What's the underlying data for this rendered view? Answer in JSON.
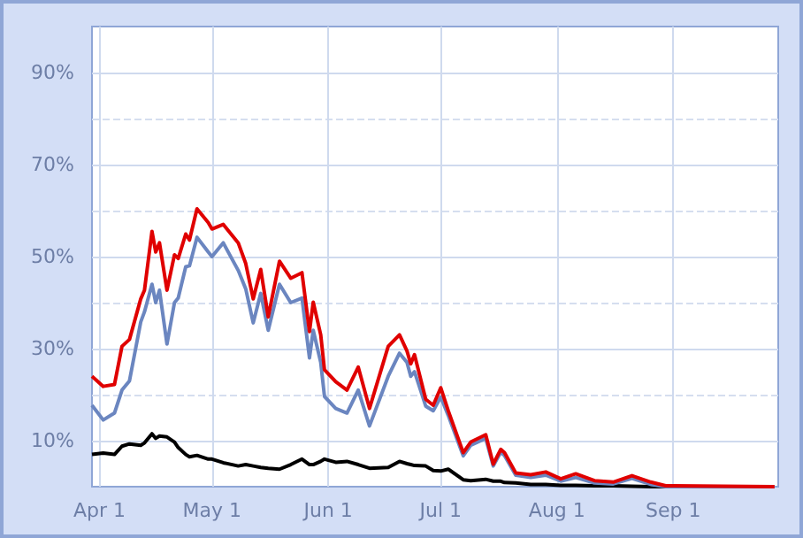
{
  "chart_data": {
    "type": "line",
    "grid": true,
    "marker": "none",
    "line_style": "solid",
    "x": [
      "--03-30",
      "--04-02",
      "--04-05",
      "--04-07",
      "--04-09",
      "--04-12",
      "--04-13",
      "--04-15",
      "--04-16",
      "--04-17",
      "--04-19",
      "--04-21",
      "--04-22",
      "--04-24",
      "--04-25",
      "--04-27",
      "--04-30",
      "--05-01",
      "--05-04",
      "--05-08",
      "--05-10",
      "--05-12",
      "--05-14",
      "--05-16",
      "--05-19",
      "--05-22",
      "--05-25",
      "--05-27",
      "--05-28",
      "--05-30",
      "--05-31",
      "--06-03",
      "--06-06",
      "--06-09",
      "--06-12",
      "--06-17",
      "--06-20",
      "--06-22",
      "--06-23",
      "--06-24",
      "--06-27",
      "--06-29",
      "--07-01",
      "--07-03",
      "--07-07",
      "--07-09",
      "--07-13",
      "--07-15",
      "--07-17",
      "--07-18",
      "--07-21",
      "--07-25",
      "--07-29",
      "--08-02",
      "--08-06",
      "--08-11",
      "--08-16",
      "--08-21",
      "--08-26",
      "--08-30",
      "--09-28"
    ],
    "series": [
      {
        "color": "#000000",
        "values": [
          7,
          7.3,
          7,
          8.8,
          9.3,
          9,
          9.5,
          11.5,
          10.5,
          11,
          10.8,
          9.7,
          8.5,
          7,
          6.5,
          6.8,
          6,
          6,
          5.2,
          4.5,
          4.8,
          4.5,
          4.2,
          4,
          3.8,
          4.8,
          6,
          4.8,
          4.8,
          5.5,
          6,
          5.3,
          5.5,
          4.8,
          4,
          4.2,
          5.5,
          5,
          4.8,
          4.6,
          4.5,
          3.5,
          3.4,
          3.8,
          1.5,
          1.3,
          1.6,
          1.2,
          1.2,
          0.9,
          0.8,
          0.5,
          0.5,
          0.3,
          0.3,
          0.2,
          0.2,
          0.1,
          0,
          0,
          null
        ]
      },
      {
        "color": "#6b86c0",
        "values": [
          17.7,
          14.5,
          16,
          21,
          23,
          35.8,
          38,
          44,
          40,
          42.7,
          31,
          40,
          41,
          47.8,
          48,
          54.2,
          51,
          50,
          53,
          47,
          43,
          35.6,
          42,
          34,
          44,
          40,
          41,
          28,
          34,
          27,
          19.6,
          17,
          16,
          21,
          13.2,
          24,
          29,
          27,
          24,
          25,
          17.5,
          16.5,
          19.5,
          15.5,
          6.7,
          9,
          10.5,
          4.5,
          7.5,
          6.8,
          2.5,
          2,
          2.5,
          1.2,
          2,
          0.8,
          0.6,
          1.8,
          0.5,
          0,
          0
        ]
      },
      {
        "color": "#e00000",
        "values": [
          24,
          21.8,
          22.2,
          30.5,
          32,
          40.8,
          42.7,
          55.5,
          51,
          53,
          42.7,
          50.4,
          49.6,
          54.9,
          53.6,
          60.4,
          57.4,
          56,
          57,
          53,
          48.5,
          40.8,
          47.2,
          36.9,
          49,
          45.3,
          46.5,
          33.7,
          40.1,
          33,
          25.4,
          22.8,
          21,
          26,
          17,
          30.5,
          33,
          29.5,
          26.7,
          28.7,
          19,
          17.7,
          21.5,
          16.5,
          7.4,
          9.7,
          11.3,
          4.9,
          8.1,
          7.4,
          3,
          2.6,
          3.2,
          1.7,
          2.8,
          1.3,
          1,
          2.4,
          1,
          0.2,
          0
        ]
      }
    ],
    "xlim": [
      "--03-30",
      "--09-29"
    ],
    "xticks": [
      {
        "value": "--04-01",
        "label": "Apr 1"
      },
      {
        "value": "--05-01",
        "label": "May 1"
      },
      {
        "value": "--06-01",
        "label": "Jun 1"
      },
      {
        "value": "--07-01",
        "label": "Jul 1"
      },
      {
        "value": "--08-01",
        "label": "Aug 1"
      },
      {
        "value": "--09-01",
        "label": "Sep 1"
      }
    ],
    "ylim": [
      0,
      100
    ],
    "yticks": [
      {
        "value": 10,
        "label": "10%"
      },
      {
        "value": 20,
        "label": null
      },
      {
        "value": 30,
        "label": "30%"
      },
      {
        "value": 40,
        "label": null
      },
      {
        "value": 50,
        "label": "50%"
      },
      {
        "value": 60,
        "label": null
      },
      {
        "value": 70,
        "label": "70%"
      },
      {
        "value": 80,
        "label": null
      },
      {
        "value": 90,
        "label": "90%"
      }
    ]
  }
}
